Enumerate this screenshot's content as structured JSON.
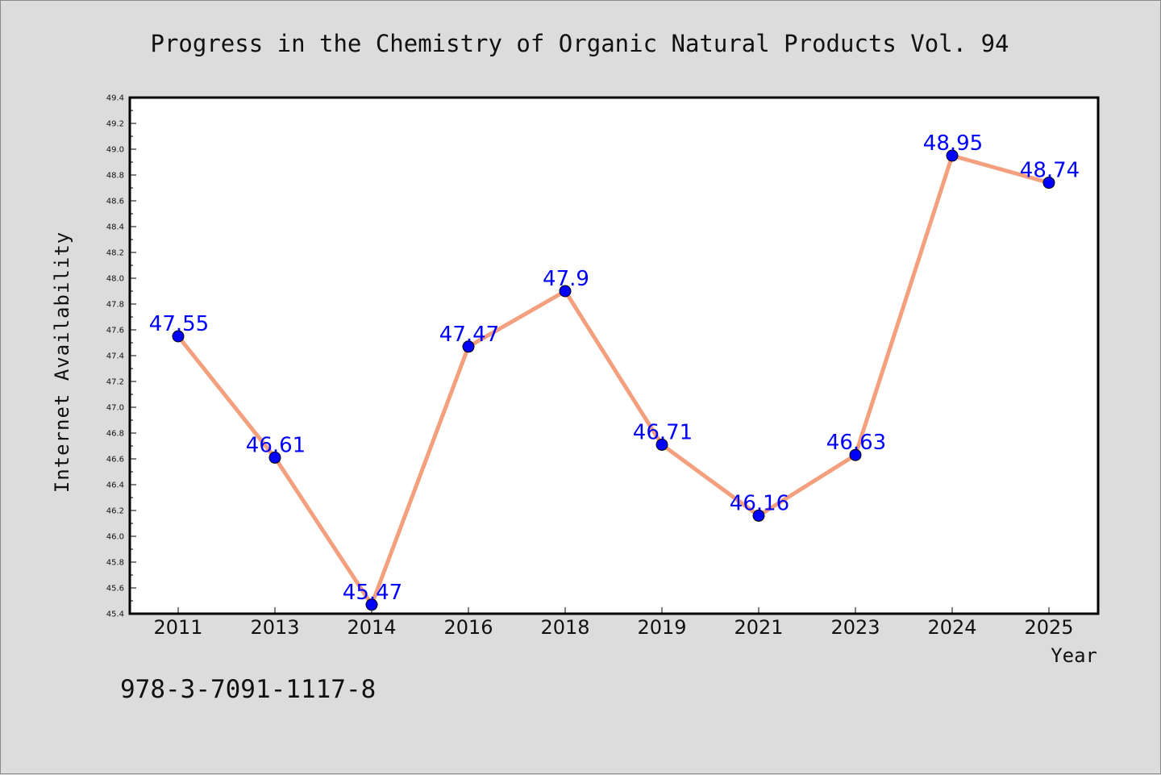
{
  "isbn": "978-3-7091-1117-8",
  "colors": {
    "background": "#dcdcdc",
    "plot_background": "#ffffff",
    "line": "#f4a07e",
    "marker": "#0000ff",
    "data_label": "#0000ff"
  },
  "chart_data": {
    "type": "line",
    "title": "Progress in the Chemistry of Organic Natural Products Vol. 94",
    "xlabel": "Year",
    "ylabel": "Internet Availability",
    "categories": [
      "2011",
      "2013",
      "2014",
      "2016",
      "2018",
      "2019",
      "2021",
      "2023",
      "2024",
      "2025"
    ],
    "series": [
      {
        "values": [
          47.55,
          46.61,
          45.47,
          47.47,
          47.9,
          46.71,
          46.16,
          46.63,
          48.95,
          48.74
        ]
      }
    ],
    "data_labels": [
      "47.55",
      "46.61",
      "45.47",
      "47.47",
      "47.9",
      "46.71",
      "46.16",
      "46.63",
      "48.95",
      "48.74"
    ],
    "ylim": [
      45.4,
      49.4
    ],
    "yticks": [
      "45.4",
      "45.6",
      "45.8",
      "46.0",
      "46.2",
      "46.4",
      "46.6",
      "46.8",
      "47.0",
      "47.2",
      "47.4",
      "47.6",
      "47.8",
      "48.0",
      "48.2",
      "48.4",
      "48.6",
      "48.8",
      "49.0",
      "49.2",
      "49.4"
    ],
    "grid": false,
    "legend": "none",
    "markers": "circle"
  }
}
